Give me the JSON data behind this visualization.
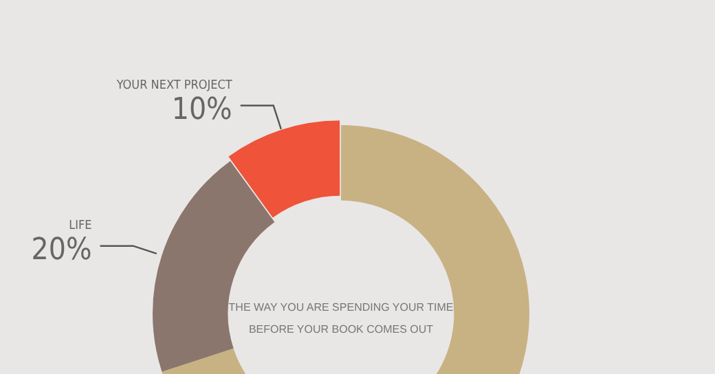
{
  "chart_data": {
    "type": "donut",
    "categories": [
      null,
      "LIFE",
      "YOUR NEXT PROJECT"
    ],
    "values": [
      70,
      20,
      10
    ],
    "colors": [
      "#c8b283",
      "#8a766c",
      "#ef5339"
    ],
    "value_labels": [
      null,
      "20%",
      "10%"
    ],
    "annotations": [
      "THE WAY YOU ARE SPENDING YOUR TIME",
      "BEFORE YOUR BOOK COMES OUT"
    ],
    "legend": false
  }
}
